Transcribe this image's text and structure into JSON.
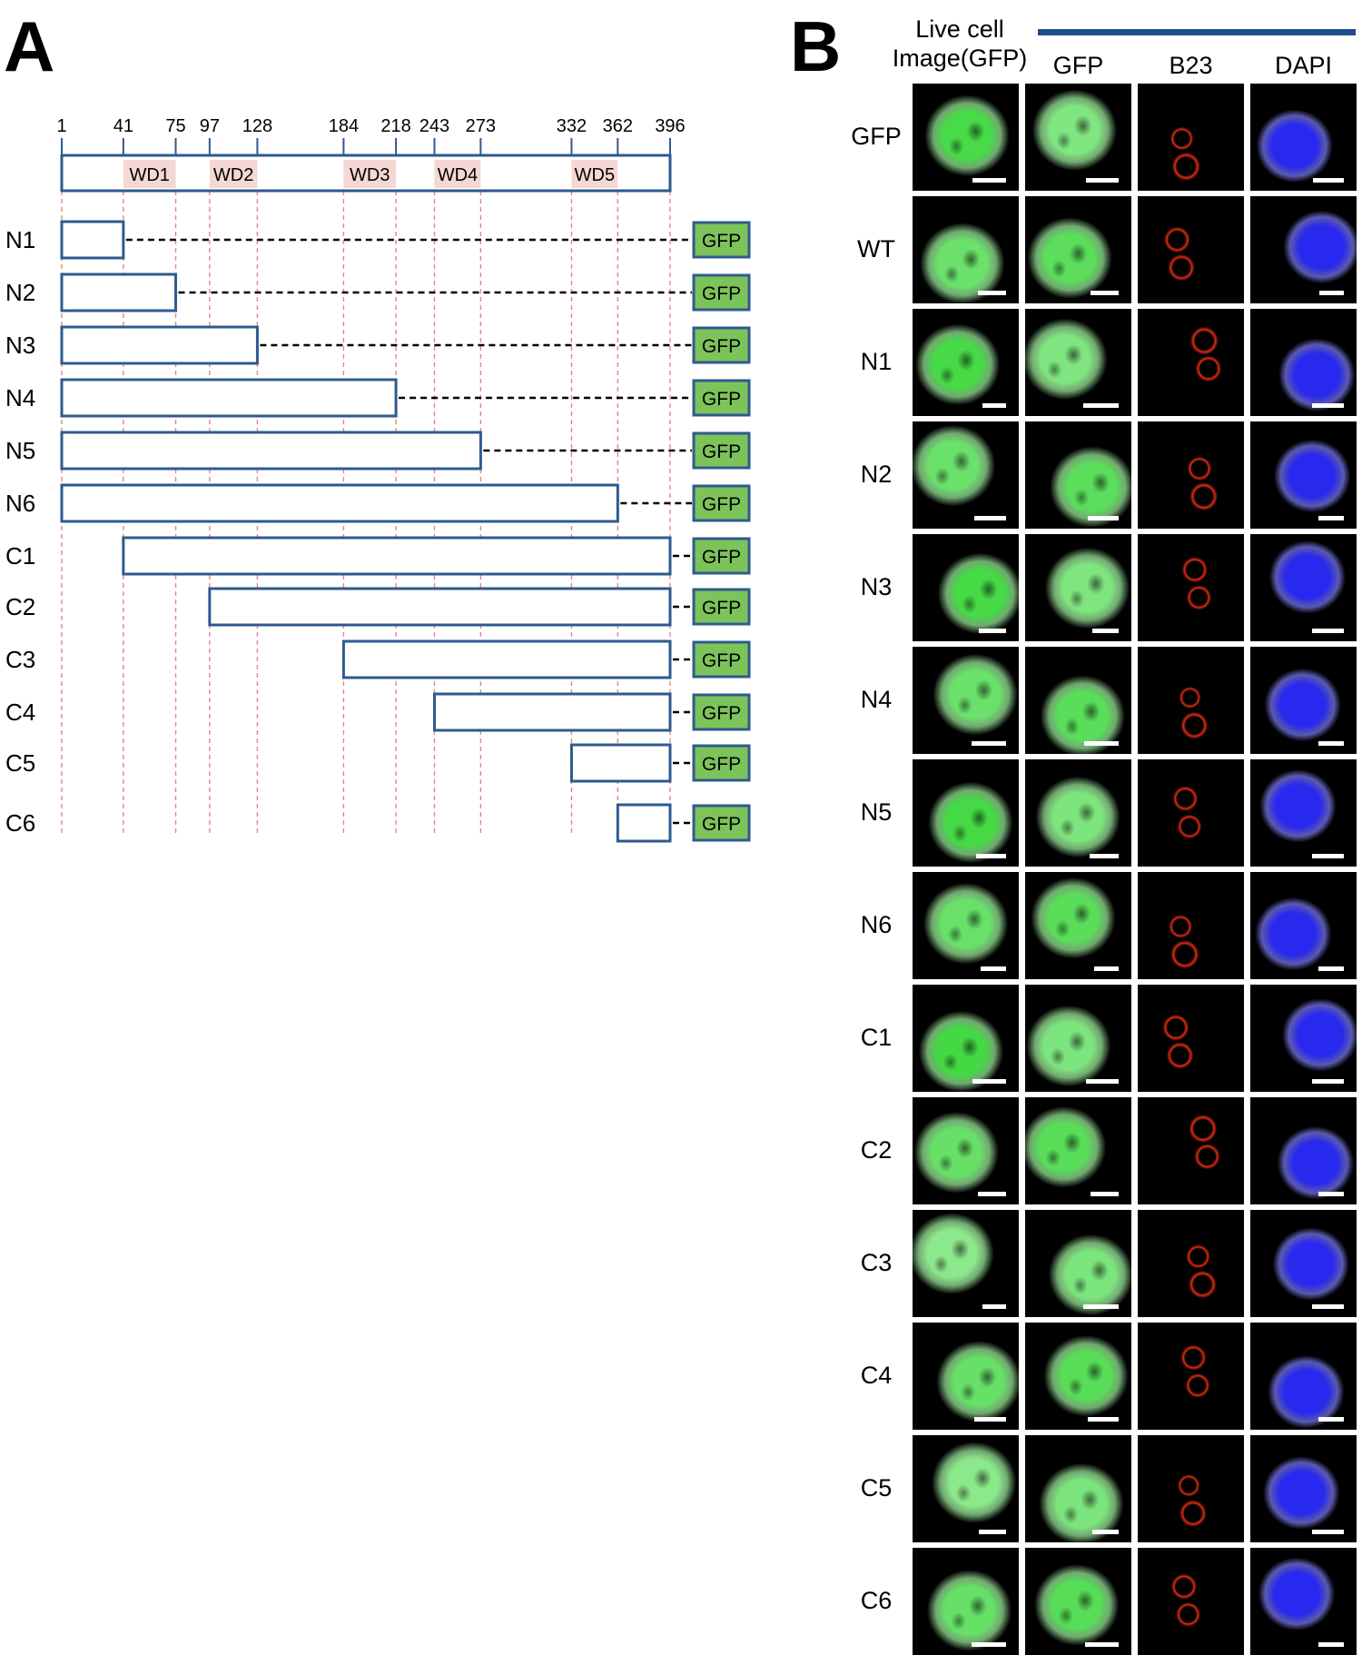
{
  "panel_a": {
    "letter": "A",
    "positions": [
      1,
      41,
      75,
      97,
      128,
      184,
      218,
      243,
      273,
      332,
      362,
      396
    ],
    "protein_length": 396,
    "domains": [
      {
        "label": "WD1",
        "start": 41,
        "end": 75
      },
      {
        "label": "WD2",
        "start": 97,
        "end": 128
      },
      {
        "label": "WD3",
        "start": 184,
        "end": 218
      },
      {
        "label": "WD4",
        "start": 243,
        "end": 273
      },
      {
        "label": "WD5",
        "start": 332,
        "end": 362
      }
    ],
    "constructs": [
      {
        "label": "N1",
        "start": 1,
        "end": 41
      },
      {
        "label": "N2",
        "start": 1,
        "end": 75
      },
      {
        "label": "N3",
        "start": 1,
        "end": 128
      },
      {
        "label": "N4",
        "start": 1,
        "end": 218
      },
      {
        "label": "N5",
        "start": 1,
        "end": 273
      },
      {
        "label": "N6",
        "start": 1,
        "end": 362
      },
      {
        "label": "C1",
        "start": 41,
        "end": 396
      },
      {
        "label": "C2",
        "start": 97,
        "end": 396
      },
      {
        "label": "C3",
        "start": 184,
        "end": 396
      },
      {
        "label": "C4",
        "start": 243,
        "end": 396
      },
      {
        "label": "C5",
        "start": 332,
        "end": 396
      },
      {
        "label": "C6",
        "start": 362,
        "end": 396
      }
    ],
    "tag_label": "GFP",
    "colors": {
      "outline": "#2e5a8f",
      "domain_fill": "#f5d7d3",
      "guide": "#e08a80",
      "tag_fill": "#7cc35a"
    }
  },
  "panel_b": {
    "letter": "B",
    "live_header": "Live cell\nImage(GFP)",
    "column_headers": [
      "GFP",
      "B23",
      "DAPI"
    ],
    "columns": [
      "live-gfp",
      "gfp",
      "b23",
      "dapi"
    ],
    "row_labels": [
      "GFP",
      "WT",
      "N1",
      "N2",
      "N3",
      "N4",
      "N5",
      "N6",
      "C1",
      "C2",
      "C3",
      "C4",
      "C5",
      "C6"
    ],
    "colors": {
      "gfp": "#2fd52f",
      "b23": "#e02a10",
      "dapi": "#2828ee",
      "bar": "#1f4e8c"
    }
  }
}
